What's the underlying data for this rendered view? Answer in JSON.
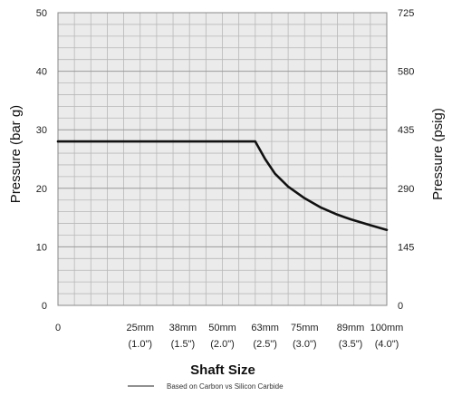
{
  "chart_data": {
    "type": "line",
    "xlabel": "Shaft Size",
    "ylabel": "Pressure (bar g)",
    "y2label": "Pressure (psig)",
    "ylim": [
      0,
      50
    ],
    "y2lim": [
      0,
      725
    ],
    "yticks": [
      "0",
      "10",
      "20",
      "30",
      "40",
      "50"
    ],
    "y2ticks": [
      "0",
      "145",
      "290",
      "435",
      "580",
      "725"
    ],
    "xlim": [
      0,
      100
    ],
    "xticks": [
      {
        "value": 0,
        "label": "0",
        "sublabel": ""
      },
      {
        "value": 25,
        "label": "25mm",
        "sublabel": "(1.0\")"
      },
      {
        "value": 38,
        "label": "38mm",
        "sublabel": "(1.5\")"
      },
      {
        "value": 50,
        "label": "50mm",
        "sublabel": "(2.0\")"
      },
      {
        "value": 63,
        "label": "63mm",
        "sublabel": "(2.5\")"
      },
      {
        "value": 75,
        "label": "75mm",
        "sublabel": "(3.0\")"
      },
      {
        "value": 89,
        "label": "89mm",
        "sublabel": "(3.5\")"
      },
      {
        "value": 100,
        "label": "100mm",
        "sublabel": "(4.0\")"
      }
    ],
    "grid": true,
    "legend": {
      "text": "Based on Carbon vs Silicon Carbide",
      "position": "bottom"
    },
    "series": [
      {
        "points": [
          [
            0,
            28
          ],
          [
            25,
            28
          ],
          [
            38,
            28
          ],
          [
            50,
            28
          ],
          [
            60,
            28
          ],
          [
            63,
            25
          ],
          [
            66,
            22.5
          ],
          [
            70,
            20.3
          ],
          [
            75,
            18.3
          ],
          [
            80,
            16.7
          ],
          [
            85,
            15.5
          ],
          [
            89,
            14.7
          ],
          [
            95,
            13.7
          ],
          [
            100,
            12.9
          ]
        ]
      }
    ],
    "colors": {
      "line": "#111111",
      "grid": "#b8b8b8",
      "plot_bg": "#ebebeb",
      "frame": "#888888"
    }
  }
}
